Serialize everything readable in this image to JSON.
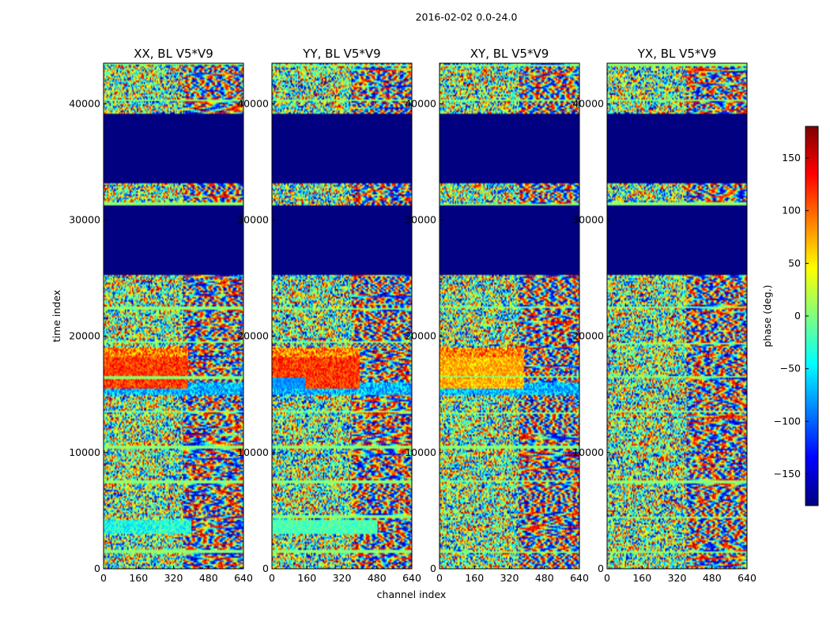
{
  "figure": {
    "suptitle": "2016-02-02 0.0-24.0"
  },
  "colors": {
    "jet": [
      "#00007f",
      "#0000ff",
      "#007fff",
      "#00ffff",
      "#7fff7f",
      "#ffff00",
      "#ff7f00",
      "#ff0000",
      "#7f0000"
    ],
    "masked": "#000080"
  },
  "chart_data": [
    {
      "type": "heatmap",
      "title": "XX, BL V5*V9",
      "xlabel": "",
      "ylabel": "time index",
      "xlim": [
        0,
        640
      ],
      "ylim": [
        0,
        43500
      ],
      "xticks": [
        0,
        160,
        320,
        480,
        640
      ],
      "yticks": [
        0,
        10000,
        20000,
        30000,
        40000
      ],
      "value_range_deg": [
        -180,
        180
      ],
      "masked_time_ranges": [
        [
          25300,
          31200
        ],
        [
          33200,
          39200
        ]
      ],
      "feature": "coherent red/orange (~120 deg) band at time 15500-19000, channels 0-360"
    },
    {
      "type": "heatmap",
      "title": "YY, BL V5*V9",
      "xlabel": "channel index",
      "ylabel": "",
      "xlim": [
        0,
        640
      ],
      "ylim": [
        0,
        43500
      ],
      "xticks": [
        0,
        160,
        320,
        480,
        640
      ],
      "yticks": [
        0,
        10000,
        20000,
        30000,
        40000
      ],
      "value_range_deg": [
        -180,
        180
      ],
      "masked_time_ranges": [
        [
          25300,
          31200
        ],
        [
          33200,
          39200
        ]
      ],
      "feature": "coherent red band at time 15500-19000, channels 0-400, blue at low channels"
    },
    {
      "type": "heatmap",
      "title": "XY, BL V5*V9",
      "xlabel": "",
      "ylabel": "",
      "xlim": [
        0,
        640
      ],
      "ylim": [
        0,
        43500
      ],
      "xticks": [
        0,
        160,
        320,
        480,
        640
      ],
      "yticks": [
        0,
        10000,
        20000,
        30000,
        40000
      ],
      "value_range_deg": [
        -180,
        180
      ],
      "masked_time_ranges": [
        [
          25300,
          31200
        ],
        [
          33200,
          39200
        ]
      ],
      "feature": "yellow/red band at time 15500-19000, channels 0-400"
    },
    {
      "type": "heatmap",
      "title": "YX, BL V5*V9",
      "xlabel": "",
      "ylabel": "",
      "xlim": [
        0,
        640
      ],
      "ylim": [
        0,
        43500
      ],
      "xticks": [
        0,
        160,
        320,
        480,
        640
      ],
      "yticks": [
        0,
        10000,
        20000,
        30000,
        40000
      ],
      "value_range_deg": [
        -180,
        180
      ],
      "masked_time_ranges": [
        [
          25300,
          31200
        ],
        [
          33200,
          39200
        ]
      ],
      "feature": "noisy phase throughout"
    }
  ],
  "colorbar": {
    "label": "phase (deg.)",
    "range": [
      -180,
      180
    ],
    "ticks": [
      150,
      100,
      50,
      0,
      -50,
      -100,
      -150
    ],
    "tick_labels": [
      "150",
      "100",
      "50",
      "0",
      "−50",
      "−100",
      "−150"
    ]
  }
}
